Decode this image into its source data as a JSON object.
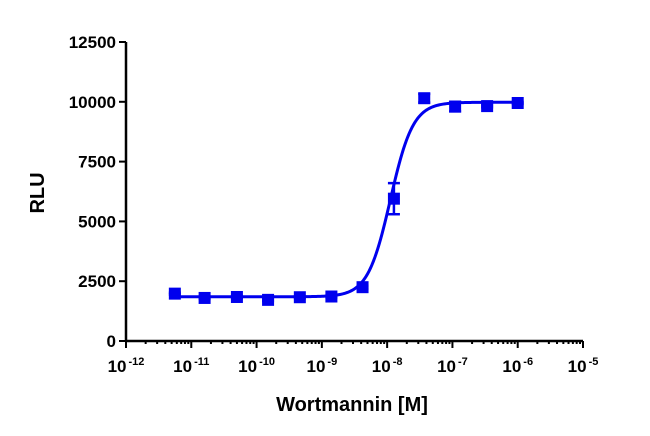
{
  "chart_data": {
    "type": "scatter",
    "xlabel": "Wortmannin [M]",
    "ylabel": "RLU",
    "xscale": "log",
    "xlim": [
      1e-12,
      1e-05
    ],
    "ylim": [
      0,
      12500
    ],
    "yticks": [
      "0",
      "2500",
      "5000",
      "7500",
      "10000",
      "12500"
    ],
    "xticks": [
      {
        "base": "10",
        "exp": "-12"
      },
      {
        "base": "10",
        "exp": "-11"
      },
      {
        "base": "10",
        "exp": "-10"
      },
      {
        "base": "10",
        "exp": "-9"
      },
      {
        "base": "10",
        "exp": "-8"
      },
      {
        "base": "10",
        "exp": "-7"
      },
      {
        "base": "10",
        "exp": "-6"
      },
      {
        "base": "10",
        "exp": "-5"
      }
    ],
    "color": "#0000ee",
    "grid": false,
    "legend": "none",
    "points": [
      {
        "x": 5.6e-12,
        "y": 1980,
        "err": 40
      },
      {
        "x": 1.6e-11,
        "y": 1800,
        "err": 40
      },
      {
        "x": 5e-11,
        "y": 1840,
        "err": 40
      },
      {
        "x": 1.5e-10,
        "y": 1720,
        "err": 50
      },
      {
        "x": 4.6e-10,
        "y": 1830,
        "err": 40
      },
      {
        "x": 1.4e-09,
        "y": 1860,
        "err": 40
      },
      {
        "x": 4.2e-09,
        "y": 2250,
        "err": 60
      },
      {
        "x": 1.27e-08,
        "y": 5950,
        "err": 650
      },
      {
        "x": 3.7e-08,
        "y": 10150,
        "err": 180
      },
      {
        "x": 1.1e-07,
        "y": 9800,
        "err": 200
      },
      {
        "x": 3.4e-07,
        "y": 9820,
        "err": 50
      },
      {
        "x": 1e-06,
        "y": 9950,
        "err": 40
      }
    ],
    "fit": {
      "bottom": 1850,
      "top": 9980,
      "log_ec50": -7.95,
      "hill": 2.5
    }
  }
}
